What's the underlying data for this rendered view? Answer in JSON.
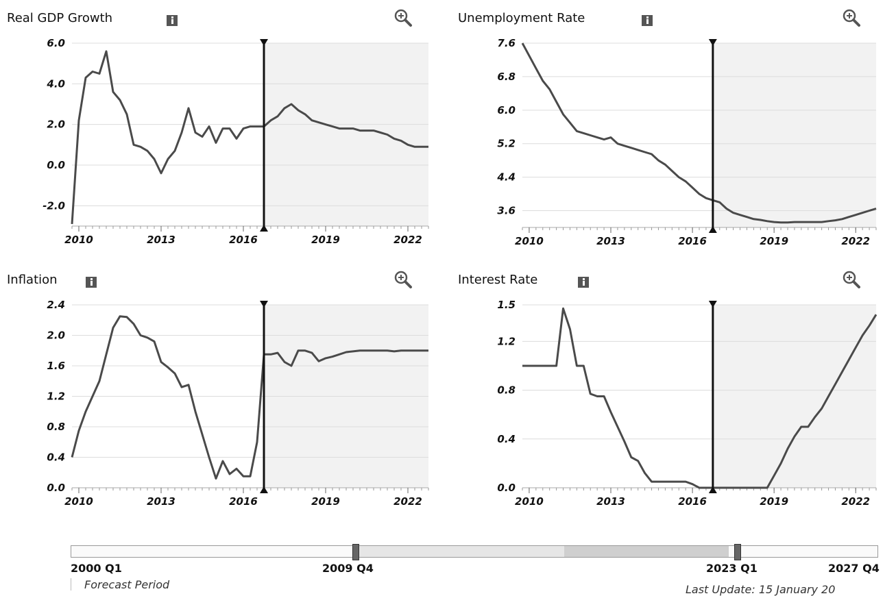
{
  "panels": [
    {
      "id": "gdp",
      "title": "Real GDP Growth",
      "info_icon": "info-icon",
      "zoom_icon": "zoom-in-icon"
    },
    {
      "id": "unemployment",
      "title": "Unemployment Rate",
      "info_icon": "info-icon",
      "zoom_icon": "zoom-in-icon"
    },
    {
      "id": "inflation",
      "title": "Inflation",
      "info_icon": "info-icon",
      "zoom_icon": "zoom-in-icon"
    },
    {
      "id": "interest",
      "title": "Interest Rate",
      "info_icon": "info-icon",
      "zoom_icon": "zoom-in-icon"
    }
  ],
  "chart_data": [
    {
      "type": "line",
      "title": "Real GDP Growth",
      "x_ticks": [
        2010,
        2013,
        2016,
        2019,
        2022
      ],
      "y_ticks": [
        "6.0",
        "4.0",
        "2.0",
        "0.0",
        "-2.0"
      ],
      "xlim": [
        2009.75,
        2022.75
      ],
      "ylim": [
        -3.0,
        6.0
      ],
      "forecast_start": 2016.75,
      "grid": true,
      "colors": {
        "line": "#4a4a4a",
        "forecast_shade": "#f2f2f2",
        "marker": "#111111"
      },
      "x": [
        2009.75,
        2010.0,
        2010.25,
        2010.5,
        2010.75,
        2011.0,
        2011.25,
        2011.5,
        2011.75,
        2012.0,
        2012.25,
        2012.5,
        2012.75,
        2013.0,
        2013.25,
        2013.5,
        2013.75,
        2014.0,
        2014.25,
        2014.5,
        2014.75,
        2015.0,
        2015.25,
        2015.5,
        2015.75,
        2016.0,
        2016.25,
        2016.5,
        2016.75,
        2017.0,
        2017.25,
        2017.5,
        2017.75,
        2018.0,
        2018.25,
        2018.5,
        2018.75,
        2019.0,
        2019.25,
        2019.5,
        2019.75,
        2020.0,
        2020.25,
        2020.5,
        2020.75,
        2021.0,
        2021.25,
        2021.5,
        2021.75,
        2022.0,
        2022.25,
        2022.5,
        2022.75
      ],
      "y": [
        -2.9,
        2.2,
        4.3,
        4.6,
        4.5,
        5.6,
        3.6,
        3.2,
        2.5,
        1.0,
        0.9,
        0.7,
        0.3,
        -0.4,
        0.3,
        0.7,
        1.6,
        2.8,
        1.6,
        1.4,
        1.9,
        1.1,
        1.8,
        1.8,
        1.3,
        1.8,
        1.9,
        1.9,
        1.9,
        2.2,
        2.4,
        2.8,
        3.0,
        2.7,
        2.5,
        2.2,
        2.1,
        2.0,
        1.9,
        1.8,
        1.8,
        1.8,
        1.7,
        1.7,
        1.7,
        1.6,
        1.5,
        1.3,
        1.2,
        1.0,
        0.9,
        0.9,
        0.9
      ]
    },
    {
      "type": "line",
      "title": "Unemployment Rate",
      "x_ticks": [
        2010,
        2013,
        2016,
        2019,
        2022
      ],
      "y_ticks": [
        "7.6",
        "6.8",
        "6.0",
        "5.2",
        "4.4",
        "3.6"
      ],
      "xlim": [
        2009.75,
        2022.75
      ],
      "ylim": [
        3.2,
        7.6
      ],
      "forecast_start": 2016.75,
      "grid": true,
      "colors": {
        "line": "#4a4a4a",
        "forecast_shade": "#f2f2f2",
        "marker": "#111111"
      },
      "x": [
        2009.75,
        2010.0,
        2010.25,
        2010.5,
        2010.75,
        2011.0,
        2011.25,
        2011.5,
        2011.75,
        2012.0,
        2012.25,
        2012.5,
        2012.75,
        2013.0,
        2013.25,
        2013.5,
        2013.75,
        2014.0,
        2014.25,
        2014.5,
        2014.75,
        2015.0,
        2015.25,
        2015.5,
        2015.75,
        2016.0,
        2016.25,
        2016.5,
        2016.75,
        2017.0,
        2017.25,
        2017.5,
        2017.75,
        2018.0,
        2018.25,
        2018.5,
        2018.75,
        2019.0,
        2019.25,
        2019.5,
        2019.75,
        2020.0,
        2020.25,
        2020.5,
        2020.75,
        2021.0,
        2021.25,
        2021.5,
        2021.75,
        2022.0,
        2022.25,
        2022.5,
        2022.75
      ],
      "y": [
        7.6,
        7.3,
        7.0,
        6.7,
        6.5,
        6.2,
        5.9,
        5.7,
        5.5,
        5.45,
        5.4,
        5.35,
        5.3,
        5.35,
        5.2,
        5.15,
        5.1,
        5.05,
        5.0,
        4.95,
        4.8,
        4.7,
        4.55,
        4.4,
        4.3,
        4.15,
        4.0,
        3.9,
        3.85,
        3.8,
        3.65,
        3.55,
        3.5,
        3.45,
        3.4,
        3.38,
        3.35,
        3.33,
        3.32,
        3.32,
        3.33,
        3.33,
        3.33,
        3.33,
        3.33,
        3.35,
        3.37,
        3.4,
        3.45,
        3.5,
        3.55,
        3.6,
        3.65
      ]
    },
    {
      "type": "line",
      "title": "Inflation",
      "x_ticks": [
        2010,
        2013,
        2016,
        2019,
        2022
      ],
      "y_ticks": [
        "2.4",
        "2.0",
        "1.6",
        "1.2",
        "0.8",
        "0.4",
        "0.0"
      ],
      "xlim": [
        2009.75,
        2022.75
      ],
      "ylim": [
        0.0,
        2.4
      ],
      "forecast_start": 2016.75,
      "grid": true,
      "colors": {
        "line": "#4a4a4a",
        "forecast_shade": "#f2f2f2",
        "marker": "#111111"
      },
      "x": [
        2009.75,
        2010.0,
        2010.25,
        2010.5,
        2010.75,
        2011.0,
        2011.25,
        2011.5,
        2011.75,
        2012.0,
        2012.25,
        2012.5,
        2012.75,
        2013.0,
        2013.25,
        2013.5,
        2013.75,
        2014.0,
        2014.25,
        2014.5,
        2014.75,
        2015.0,
        2015.25,
        2015.5,
        2015.75,
        2016.0,
        2016.25,
        2016.5,
        2016.75,
        2017.0,
        2017.25,
        2017.5,
        2017.75,
        2018.0,
        2018.25,
        2018.5,
        2018.75,
        2019.0,
        2019.25,
        2019.5,
        2019.75,
        2020.0,
        2020.25,
        2020.5,
        2020.75,
        2021.0,
        2021.25,
        2021.5,
        2021.75,
        2022.0,
        2022.25,
        2022.5,
        2022.75
      ],
      "y": [
        0.4,
        0.75,
        1.0,
        1.2,
        1.4,
        1.75,
        2.1,
        2.25,
        2.24,
        2.15,
        2.0,
        1.97,
        1.92,
        1.65,
        1.58,
        1.5,
        1.32,
        1.35,
        1.0,
        0.7,
        0.4,
        0.12,
        0.35,
        0.18,
        0.25,
        0.15,
        0.15,
        0.6,
        1.75,
        1.75,
        1.77,
        1.65,
        1.6,
        1.8,
        1.8,
        1.77,
        1.66,
        1.7,
        1.72,
        1.75,
        1.78,
        1.79,
        1.8,
        1.8,
        1.8,
        1.8,
        1.8,
        1.79,
        1.8,
        1.8,
        1.8,
        1.8,
        1.8
      ]
    },
    {
      "type": "line",
      "title": "Interest Rate",
      "x_ticks": [
        2010,
        2013,
        2016,
        2019,
        2022
      ],
      "y_ticks": [
        "1.5",
        "1.2",
        "0.8",
        "0.4",
        "0.0"
      ],
      "xlim": [
        2009.75,
        2022.75
      ],
      "ylim": [
        0.0,
        1.5
      ],
      "forecast_start": 2016.75,
      "grid": true,
      "colors": {
        "line": "#4a4a4a",
        "forecast_shade": "#f2f2f2",
        "marker": "#111111"
      },
      "x": [
        2009.75,
        2010.0,
        2010.25,
        2010.5,
        2010.75,
        2011.0,
        2011.25,
        2011.5,
        2011.75,
        2012.0,
        2012.25,
        2012.5,
        2012.75,
        2013.0,
        2013.25,
        2013.5,
        2013.75,
        2014.0,
        2014.25,
        2014.5,
        2014.75,
        2015.0,
        2015.25,
        2015.5,
        2015.75,
        2016.0,
        2016.25,
        2016.5,
        2016.75,
        2017.0,
        2017.25,
        2017.5,
        2017.75,
        2018.0,
        2018.25,
        2018.5,
        2018.75,
        2019.0,
        2019.25,
        2019.5,
        2019.75,
        2020.0,
        2020.25,
        2020.5,
        2020.75,
        2021.0,
        2021.25,
        2021.5,
        2021.75,
        2022.0,
        2022.25,
        2022.5,
        2022.75
      ],
      "y": [
        1.0,
        1.0,
        1.0,
        1.0,
        1.0,
        1.0,
        1.47,
        1.3,
        1.0,
        1.0,
        0.77,
        0.75,
        0.75,
        0.62,
        0.5,
        0.38,
        0.25,
        0.22,
        0.12,
        0.05,
        0.05,
        0.05,
        0.05,
        0.05,
        0.05,
        0.03,
        0.0,
        0.0,
        0.0,
        0.0,
        0.0,
        0.0,
        0.0,
        0.0,
        0.0,
        0.0,
        0.0,
        0.1,
        0.2,
        0.32,
        0.42,
        0.5,
        0.5,
        0.58,
        0.65,
        0.75,
        0.85,
        0.95,
        1.05,
        1.15,
        1.25,
        1.33,
        1.42
      ]
    }
  ],
  "slider": {
    "start_label": "2000 Q1",
    "window_start_label": "2009 Q4",
    "window_end_label": "2023 Q1",
    "end_label": "2027 Q4"
  },
  "footer": {
    "forecast_note": "Forecast Period",
    "last_update": "Last Update: 15 January 20"
  }
}
